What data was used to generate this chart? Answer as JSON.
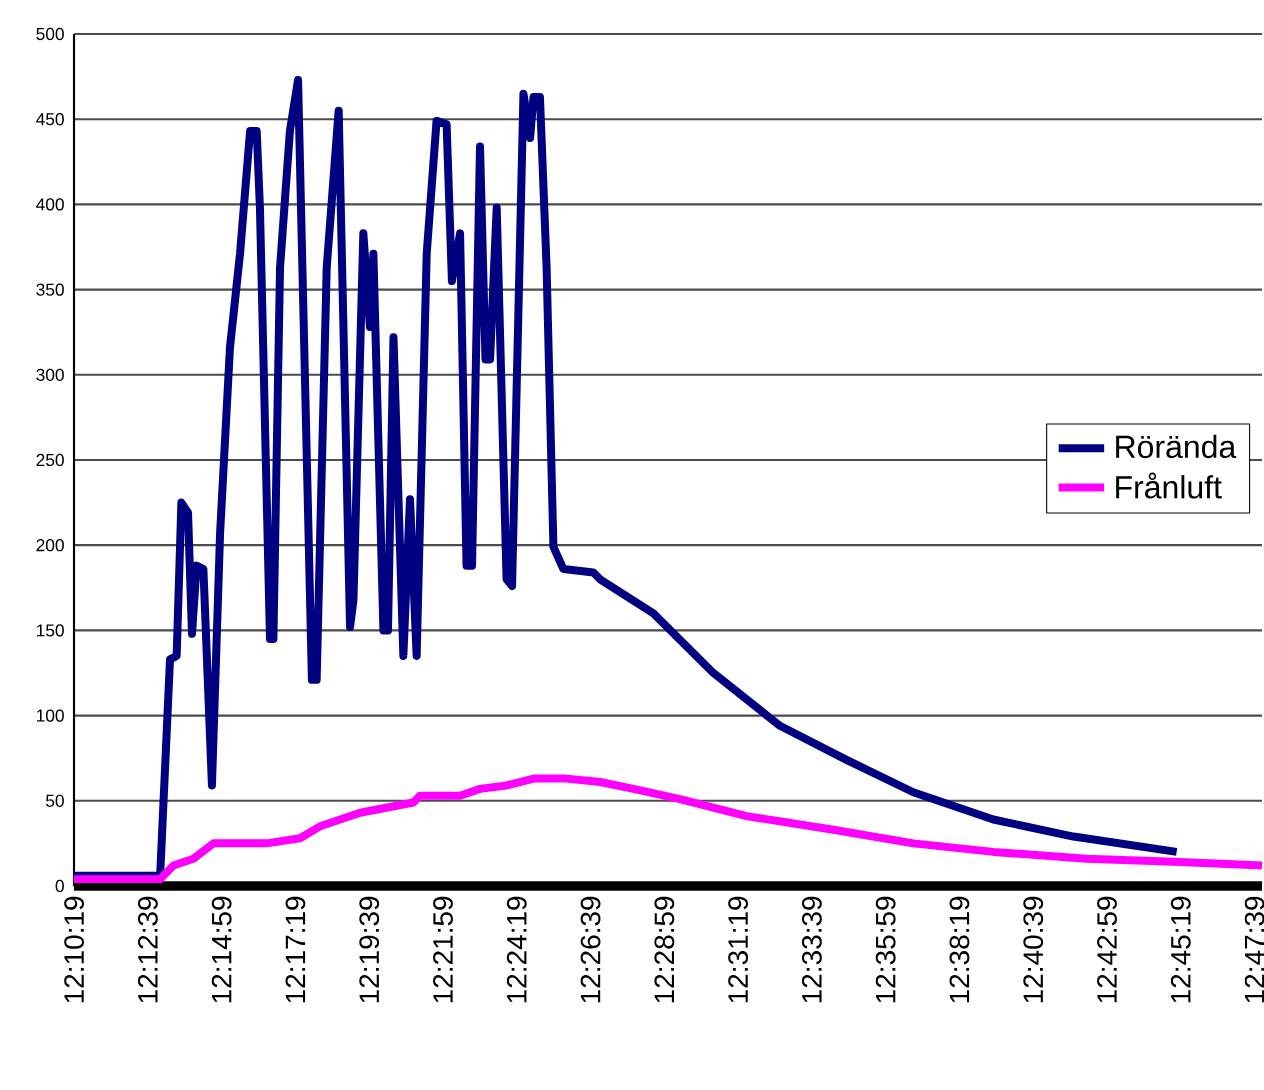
{
  "chart_data": {
    "type": "line",
    "xlim": [
      12.1719,
      12.7981
    ],
    "ylim": [
      0,
      500
    ],
    "xticks": [
      {
        "value": 12.17194,
        "label": "12:10:19"
      },
      {
        "value": 12.21083,
        "label": "12:12:39"
      },
      {
        "value": 12.24972,
        "label": "12:14:59"
      },
      {
        "value": 12.28861,
        "label": "12:17:19"
      },
      {
        "value": 12.3275,
        "label": "12:19:39"
      },
      {
        "value": 12.36639,
        "label": "12:21:59"
      },
      {
        "value": 12.40528,
        "label": "12:24:19"
      },
      {
        "value": 12.44417,
        "label": "12:26:39"
      },
      {
        "value": 12.48306,
        "label": "12:28:59"
      },
      {
        "value": 12.52194,
        "label": "12:31:19"
      },
      {
        "value": 12.56083,
        "label": "12:33:39"
      },
      {
        "value": 12.59972,
        "label": "12:35:59"
      },
      {
        "value": 12.63861,
        "label": "12:38:19"
      },
      {
        "value": 12.6775,
        "label": "12:40:39"
      },
      {
        "value": 12.71639,
        "label": "12:42:59"
      },
      {
        "value": 12.75528,
        "label": "12:45:19"
      },
      {
        "value": 12.79417,
        "label": "12:47:39"
      }
    ],
    "yticks": [
      0,
      50,
      100,
      150,
      200,
      250,
      300,
      350,
      400,
      450,
      500
    ],
    "grid": "y",
    "legend": "right",
    "marker": "none",
    "line_style": "solid",
    "series": [
      {
        "name": "Rörända",
        "color": "#000080",
        "x": [
          12.1719,
          12.2173,
          12.2225,
          12.226,
          12.2285,
          12.232,
          12.2341,
          12.2365,
          12.2401,
          12.2446,
          12.2489,
          12.2541,
          12.2594,
          12.2647,
          12.2682,
          12.2699,
          12.2752,
          12.277,
          12.2805,
          12.2857,
          12.29,
          12.2973,
          12.2998,
          12.3051,
          12.3114,
          12.3174,
          12.3192,
          12.3244,
          12.3279,
          12.3297,
          12.335,
          12.3374,
          12.3403,
          12.3455,
          12.349,
          12.3525,
          12.3578,
          12.363,
          12.3683,
          12.3711,
          12.3754,
          12.3788,
          12.3817,
          12.3859,
          12.3888,
          12.3912,
          12.3947,
          12.3999,
          12.4028,
          12.4088,
          12.4123,
          12.4141,
          12.4175,
          12.421,
          12.4246,
          12.4299,
          12.4457,
          12.4492,
          12.4773,
          12.5089,
          12.544,
          12.5791,
          12.6143,
          12.6565,
          12.6987,
          12.7531
        ],
        "values": [
          6,
          6,
          133,
          135,
          225,
          219,
          148,
          188,
          186,
          59,
          207,
          316,
          371,
          443,
          443,
          398,
          145,
          145,
          363,
          443,
          473,
          121,
          121,
          363,
          455,
          152,
          168,
          383,
          328,
          371,
          150,
          150,
          322,
          135,
          227,
          135,
          371,
          449,
          447,
          355,
          383,
          188,
          188,
          434,
          309,
          309,
          398,
          180,
          176,
          465,
          439,
          463,
          463,
          363,
          199,
          186,
          184,
          180,
          160,
          125,
          94,
          74,
          55,
          39,
          29,
          20
        ]
      },
      {
        "name": "Frånluft",
        "color": "#ff00ff",
        "x": [
          12.1719,
          12.2173,
          12.2243,
          12.2348,
          12.2454,
          12.2734,
          12.291,
          12.3016,
          12.3227,
          12.3508,
          12.3543,
          12.3754,
          12.3859,
          12.3999,
          12.4141,
          12.4316,
          12.4492,
          12.4668,
          12.4913,
          12.5264,
          12.5722,
          12.6143,
          12.6565,
          12.7056,
          12.7549,
          12.7981
        ],
        "values": [
          4,
          4,
          12,
          16,
          25,
          25,
          28,
          35,
          43,
          49,
          53,
          53,
          57,
          59,
          63,
          63,
          61,
          57,
          51,
          41,
          33,
          25,
          20,
          16,
          14,
          12
        ]
      }
    ]
  }
}
